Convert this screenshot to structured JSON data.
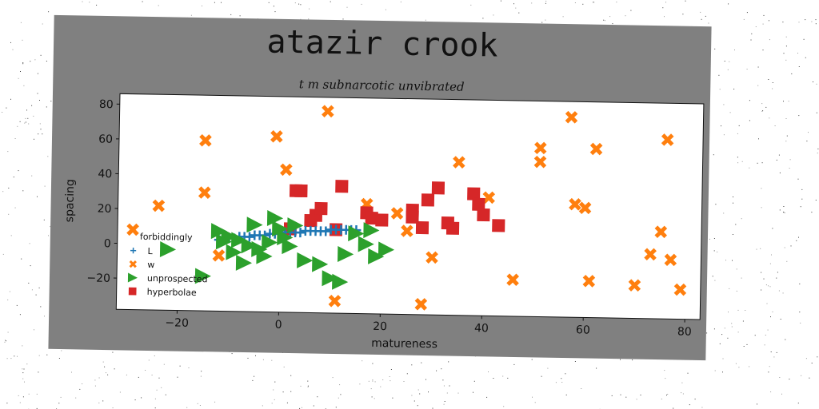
{
  "chart_data": {
    "type": "scatter",
    "title": "atazir crook",
    "subtitle": "t m subnarcotic unvibrated",
    "xlabel": "matureness",
    "ylabel": "spacing",
    "xlim": [
      -32,
      83
    ],
    "ylim": [
      -38,
      86
    ],
    "xticks": [
      -20,
      0,
      20,
      40,
      60,
      80
    ],
    "yticks": [
      -20,
      0,
      20,
      40,
      60,
      80
    ],
    "grid": false,
    "legend": {
      "title": "forbiddingly",
      "position": "lower-left"
    },
    "series": [
      {
        "name": "L",
        "marker": "plus",
        "color": "#1f77b4",
        "points": [
          [
            -12,
            3
          ],
          [
            -11,
            3
          ],
          [
            -10,
            4
          ],
          [
            -9,
            4
          ],
          [
            -8,
            5
          ],
          [
            -7,
            5
          ],
          [
            -6,
            5
          ],
          [
            -5,
            6
          ],
          [
            -4,
            6
          ],
          [
            -3,
            6
          ],
          [
            -2,
            7
          ],
          [
            -1,
            7
          ],
          [
            0,
            7
          ],
          [
            1,
            8
          ],
          [
            2,
            8
          ],
          [
            3,
            8
          ],
          [
            4,
            8
          ],
          [
            5,
            9
          ],
          [
            6,
            9
          ],
          [
            7,
            9
          ],
          [
            8,
            9
          ],
          [
            9,
            9
          ],
          [
            10,
            10
          ],
          [
            11,
            10
          ],
          [
            12,
            10
          ],
          [
            13,
            10
          ],
          [
            14,
            10
          ],
          [
            15,
            10
          ]
        ]
      },
      {
        "name": "w",
        "marker": "x",
        "color": "#ff7f0e",
        "points": [
          [
            9,
            78
          ],
          [
            -29,
            8
          ],
          [
            -24,
            22
          ],
          [
            -15,
            60
          ],
          [
            -15,
            30
          ],
          [
            -1,
            63
          ],
          [
            1,
            44
          ],
          [
            -12,
            -6
          ],
          [
            17,
            25
          ],
          [
            23,
            20
          ],
          [
            25,
            10
          ],
          [
            35,
            50
          ],
          [
            41,
            30
          ],
          [
            30,
            -5
          ],
          [
            46,
            -17
          ],
          [
            51,
            59
          ],
          [
            51,
            51
          ],
          [
            57,
            77
          ],
          [
            58,
            27
          ],
          [
            60,
            25
          ],
          [
            62,
            59
          ],
          [
            61,
            -17
          ],
          [
            70,
            -19
          ],
          [
            73,
            -1
          ],
          [
            76,
            65
          ],
          [
            75,
            12
          ],
          [
            77,
            -4
          ],
          [
            79,
            -21
          ],
          [
            11,
            -31
          ],
          [
            28,
            -32
          ]
        ]
      },
      {
        "name": "unprospected",
        "marker": "triangle-right",
        "color": "#2ca02c",
        "points": [
          [
            -12,
            8
          ],
          [
            -10,
            5
          ],
          [
            -8,
            3
          ],
          [
            -6,
            0
          ],
          [
            -4,
            -2
          ],
          [
            -2,
            2
          ],
          [
            0,
            10
          ],
          [
            1,
            5
          ],
          [
            2,
            0
          ],
          [
            -5,
            12
          ],
          [
            -3,
            -6
          ],
          [
            3,
            12
          ],
          [
            5,
            -8
          ],
          [
            8,
            -10
          ],
          [
            10,
            -18
          ],
          [
            12,
            -20
          ],
          [
            13,
            -4
          ],
          [
            15,
            8
          ],
          [
            17,
            2
          ],
          [
            19,
            -5
          ],
          [
            21,
            -1
          ],
          [
            18,
            10
          ],
          [
            -7,
            -10
          ],
          [
            -9,
            -4
          ],
          [
            -11,
            2
          ],
          [
            -1,
            16
          ],
          [
            -22,
            -3
          ],
          [
            -15,
            -18
          ]
        ]
      },
      {
        "name": "hyperbolae",
        "marker": "square",
        "color": "#d62728",
        "points": [
          [
            3,
            32
          ],
          [
            4,
            32
          ],
          [
            6,
            15
          ],
          [
            7,
            18
          ],
          [
            8,
            22
          ],
          [
            11,
            10
          ],
          [
            12,
            35
          ],
          [
            2,
            10
          ],
          [
            17,
            20
          ],
          [
            18,
            17
          ],
          [
            20,
            16
          ],
          [
            26,
            22
          ],
          [
            26,
            18
          ],
          [
            28,
            12
          ],
          [
            29,
            28
          ],
          [
            31,
            35
          ],
          [
            33,
            15
          ],
          [
            34,
            12
          ],
          [
            38,
            32
          ],
          [
            39,
            26
          ],
          [
            40,
            20
          ],
          [
            43,
            14
          ]
        ]
      }
    ]
  }
}
